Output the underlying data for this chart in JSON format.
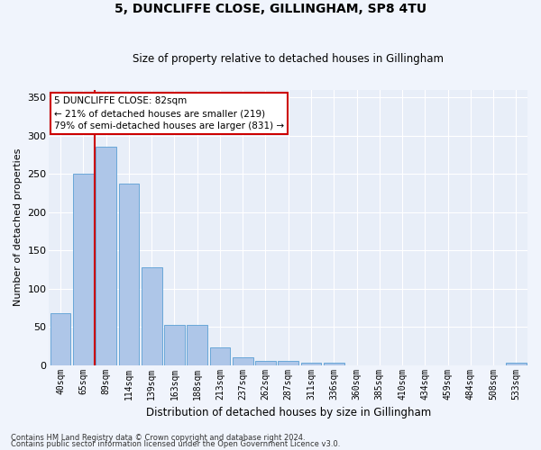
{
  "title": "5, DUNCLIFFE CLOSE, GILLINGHAM, SP8 4TU",
  "subtitle": "Size of property relative to detached houses in Gillingham",
  "xlabel": "Distribution of detached houses by size in Gillingham",
  "ylabel": "Number of detached properties",
  "bar_color": "#aec6e8",
  "bar_edge_color": "#5a9fd4",
  "bg_color": "#e8eef8",
  "grid_color": "#ffffff",
  "fig_bg_color": "#f0f4fc",
  "categories": [
    "40sqm",
    "65sqm",
    "89sqm",
    "114sqm",
    "139sqm",
    "163sqm",
    "188sqm",
    "213sqm",
    "237sqm",
    "262sqm",
    "287sqm",
    "311sqm",
    "336sqm",
    "360sqm",
    "385sqm",
    "410sqm",
    "434sqm",
    "459sqm",
    "484sqm",
    "508sqm",
    "533sqm"
  ],
  "values": [
    68,
    250,
    285,
    237,
    128,
    53,
    53,
    23,
    10,
    5,
    5,
    3,
    3,
    0,
    0,
    0,
    0,
    0,
    0,
    0,
    3
  ],
  "vline_color": "#cc0000",
  "annotation_text": "5 DUNCLIFFE CLOSE: 82sqm\n← 21% of detached houses are smaller (219)\n79% of semi-detached houses are larger (831) →",
  "annotation_box_color": "#ffffff",
  "annotation_box_edge": "#cc0000",
  "ylim": [
    0,
    360
  ],
  "yticks": [
    0,
    50,
    100,
    150,
    200,
    250,
    300,
    350
  ],
  "footer1": "Contains HM Land Registry data © Crown copyright and database right 2024.",
  "footer2": "Contains public sector information licensed under the Open Government Licence v3.0."
}
